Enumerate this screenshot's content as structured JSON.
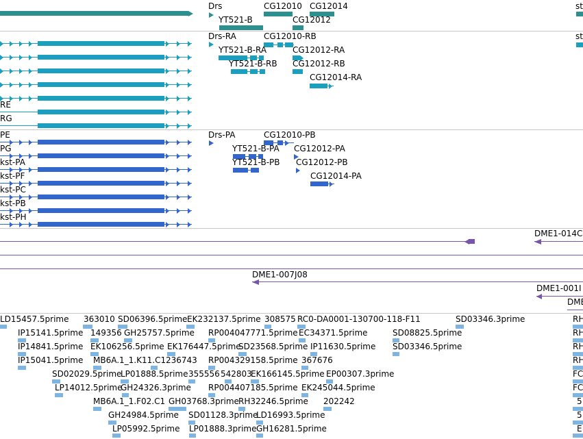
{
  "colors": {
    "gene": "#2e8f8f",
    "flybase_transcript": "#1a9fbf",
    "refseq_transcript": "#3366cc",
    "cdna": "#7755aa",
    "est": "#7fb3e0",
    "separator": "#c8c8c8"
  },
  "gene_track": {
    "labels": [
      "Drs",
      "CG12010",
      "CG12014",
      "YT521-B",
      "CG12012",
      "st"
    ]
  },
  "flybase_transcripts": {
    "labels": [
      "Drs-RA",
      "CG12010-RB",
      "YT521-B-RA",
      "CG12012-RA",
      "YT521-B-RB",
      "CG12012-RB",
      "CG12014-RA",
      "st",
      "RE",
      "RG"
    ]
  },
  "refseq_transcripts": {
    "labels": [
      "PE",
      "Drs-PA",
      "CG12010-PB",
      "PG",
      "YT521-B-PA",
      "CG12012-PA",
      "kst-PA",
      "YT521-B-PB",
      "CG12012-PB",
      "kst-PF",
      "CG12014-PA",
      "kst-PC",
      "kst-PB",
      "kst-PH"
    ]
  },
  "cdna_track": {
    "labels": [
      "DME1-014C",
      "DME1-007J08",
      "DME1-001I",
      "DME"
    ]
  },
  "est_track": {
    "labels": [
      "LD15457.5prime",
      "363010",
      "SD06396.5prime",
      "EK232137.5prime",
      "308575",
      "RC0-DA0001-130700-118-F11",
      "SD03346.3prime",
      "RH",
      "IP15141.5prime",
      "149356",
      "GH25757.5prime",
      "RP004047771.5prime",
      "EC34371.5prime",
      "SD08825.5prime",
      "RH",
      "IP14841.5prime",
      "EK106256.5prime",
      "EK176447.5prime",
      "SD23568.5prime",
      "IP11630.5prime",
      "SD03346.5prime",
      "RH",
      "IP15041.5prime",
      "MB6A.1_1.K11.C1",
      "236743",
      "RP004329158.5prime",
      "367676",
      "RH",
      "SD02029.5prime",
      "LP01888.5prime",
      "355556",
      "542803",
      "EK166145.5prime",
      "EP00307.3prime",
      "FC",
      "LP14012.5prime",
      "GH24326.3prime",
      "RP004407185.5prime",
      "EK245044.5prime",
      "FC",
      "MB6A.1_1.F02.C1",
      "GH03768.3prime",
      "RH32246.5prime",
      "202242",
      "5",
      "GH24984.5prime",
      "SD01128.3prime",
      "LD16993.5prime",
      "5",
      "LP05992.5prime",
      "LP01888.3prime",
      "GH16281.5prime",
      "E"
    ]
  }
}
